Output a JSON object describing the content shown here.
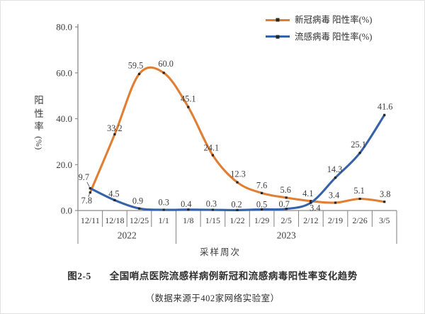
{
  "figure": {
    "caption_label": "图2-5",
    "caption_title": "全国哨点医院流感样病例新冠和流感病毒阳性率变化趋势",
    "caption_source": "（数据来源于402家网络实验室）"
  },
  "chart_data": {
    "type": "line",
    "title": "",
    "xlabel": "采样周次",
    "ylabel": "阳性率",
    "ylabel_unit": "(%)",
    "ylim": [
      0,
      80
    ],
    "yticks": [
      0,
      20,
      40,
      60,
      80
    ],
    "grid": false,
    "smooth": true,
    "legend_position": "top-right",
    "axis_color": "#8a8a8a",
    "text_color": "#3d3d3d",
    "marker": {
      "shape": "square",
      "color": "#262626",
      "size": 3.2
    },
    "categories": [
      "12/11",
      "12/18",
      "12/25",
      "1/1",
      "1/8",
      "1/15",
      "1/22",
      "1/29",
      "2/5",
      "2/12",
      "2/19",
      "2/26",
      "3/5"
    ],
    "year_groups": [
      {
        "label": "2022",
        "count": 4
      },
      {
        "label": "2023",
        "count": 9
      }
    ],
    "series": [
      {
        "key": "covid",
        "name": "新冠病毒 阳性率(%)",
        "color": "#e07e34",
        "values": [
          7.8,
          33.2,
          59.5,
          60.0,
          45.1,
          24.1,
          12.3,
          7.6,
          5.6,
          4.1,
          3.4,
          5.1,
          3.8
        ],
        "label_offsets": [
          [
            -5,
            11
          ],
          [
            0,
            -9
          ],
          [
            -5,
            -12
          ],
          [
            3,
            -13
          ],
          [
            0,
            -12
          ],
          [
            -2,
            -11
          ],
          [
            1,
            -12
          ],
          [
            0,
            -11
          ],
          [
            -1,
            -11
          ],
          [
            -4,
            -11
          ],
          [
            -2,
            -11
          ],
          [
            -1,
            -12
          ],
          [
            1,
            -11
          ]
        ],
        "leader_points": [
          0
        ]
      },
      {
        "key": "flu",
        "name": "流感病毒 阳性率(%)",
        "color": "#3562a8",
        "values": [
          9.7,
          4.5,
          0.9,
          0.3,
          0.4,
          0.3,
          0.2,
          0.5,
          0.7,
          3.4,
          14.3,
          25.1,
          41.6
        ],
        "label_offsets": [
          [
            -9,
            -16
          ],
          [
            -1,
            -9
          ],
          [
            -2,
            -11
          ],
          [
            0,
            -11
          ],
          [
            -3,
            -8
          ],
          [
            -2,
            -9
          ],
          [
            -1,
            -8
          ],
          [
            0,
            -7
          ],
          [
            -3,
            -7
          ],
          [
            6,
            7
          ],
          [
            -1,
            -12
          ],
          [
            -2,
            -12
          ],
          [
            1,
            -12
          ]
        ],
        "leader_points": [
          0
        ]
      }
    ]
  }
}
